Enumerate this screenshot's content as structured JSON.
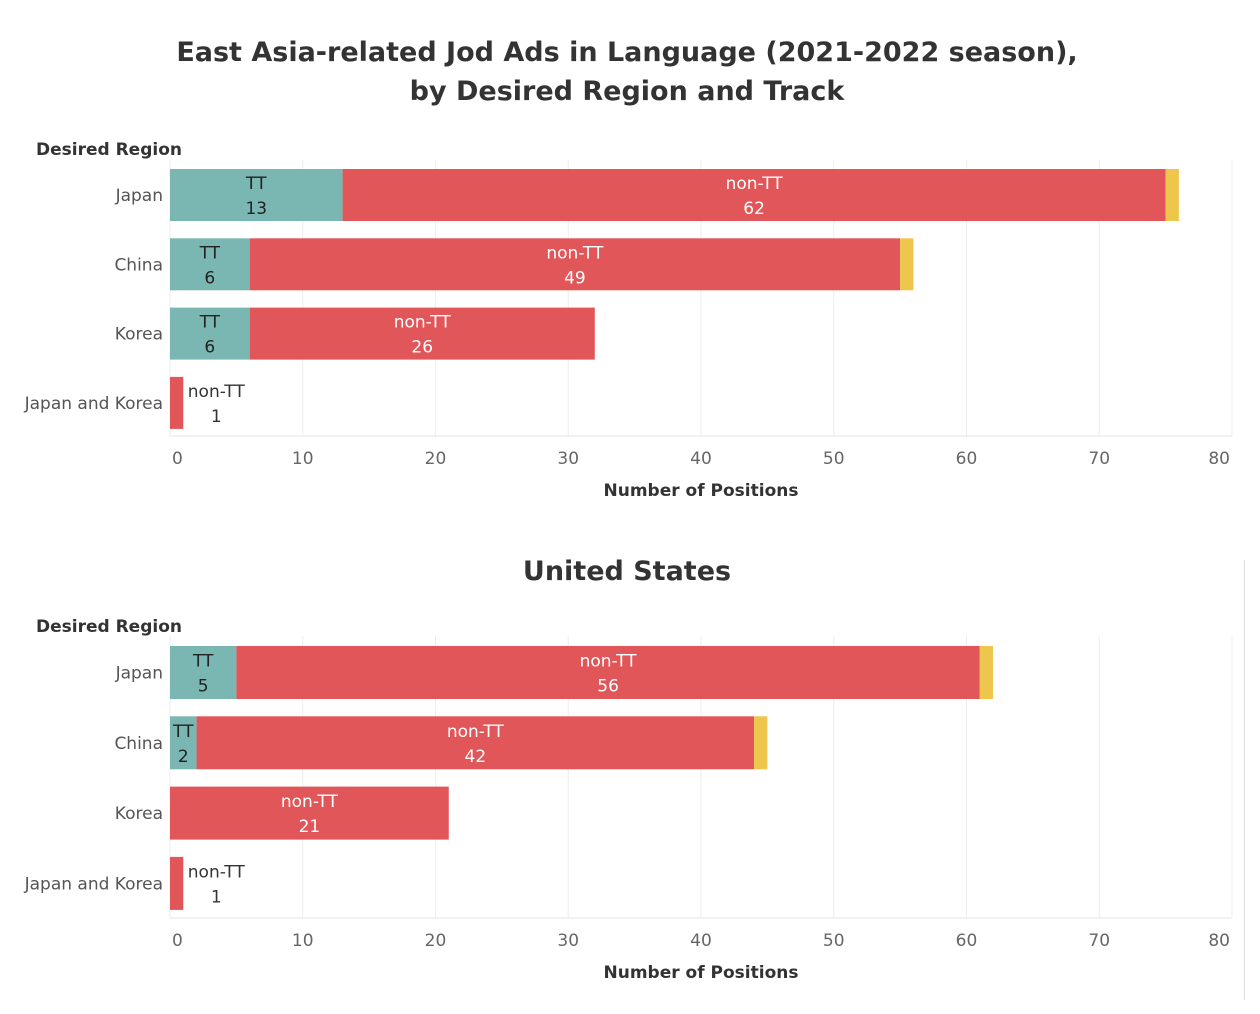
{
  "title_line1": "East Asia-related Jod Ads in Language (2021-2022 season),",
  "title_line2": "by Desired Region and Track",
  "subtitle": "United States",
  "colors": {
    "TT": "#7ab7b3",
    "non-TT": "#e05659",
    "other": "#eec64c"
  },
  "chart_data": [
    {
      "type": "bar",
      "orientation": "horizontal",
      "stacked": true,
      "title": "East Asia-related Jod Ads in Language (2021-2022 season), by Desired Region and Track",
      "ylabel": "Desired Region",
      "xlabel": "Number of Positions",
      "xlim": [
        0,
        80
      ],
      "xticks": [
        0,
        10,
        20,
        30,
        40,
        50,
        60,
        70,
        80
      ],
      "grid": true,
      "categories": [
        "Japan",
        "China",
        "Korea",
        "Japan and Korea"
      ],
      "series": [
        {
          "name": "TT",
          "values": [
            13,
            6,
            6,
            0
          ]
        },
        {
          "name": "non-TT",
          "values": [
            62,
            49,
            26,
            1
          ]
        },
        {
          "name": "",
          "values": [
            1,
            1,
            0,
            0
          ]
        }
      ]
    },
    {
      "type": "bar",
      "orientation": "horizontal",
      "stacked": true,
      "title": "United States",
      "ylabel": "Desired Region",
      "xlabel": "Number of Positions",
      "xlim": [
        0,
        80
      ],
      "xticks": [
        0,
        10,
        20,
        30,
        40,
        50,
        60,
        70,
        80
      ],
      "grid": true,
      "categories": [
        "Japan",
        "China",
        "Korea",
        "Japan and Korea"
      ],
      "series": [
        {
          "name": "TT",
          "values": [
            5,
            2,
            0,
            0
          ]
        },
        {
          "name": "non-TT",
          "values": [
            56,
            42,
            21,
            1
          ]
        },
        {
          "name": "",
          "values": [
            1,
            1,
            0,
            0
          ]
        }
      ]
    }
  ]
}
